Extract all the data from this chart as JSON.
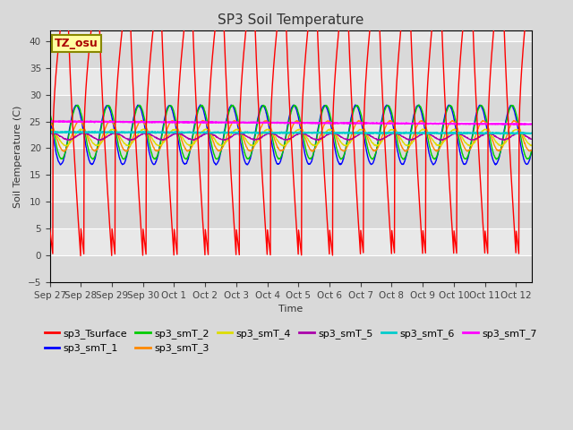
{
  "title": "SP3 Soil Temperature",
  "xlabel": "Time",
  "ylabel": "Soil Temperature (C)",
  "ylim": [
    -5,
    42
  ],
  "yticks": [
    -5,
    0,
    5,
    10,
    15,
    20,
    25,
    30,
    35,
    40
  ],
  "annotation": "TZ_osu",
  "num_days": 15.5,
  "series_colors": {
    "sp3_Tsurface": "#ff0000",
    "sp3_smT_1": "#0000ff",
    "sp3_smT_2": "#00cc00",
    "sp3_smT_3": "#ff8800",
    "sp3_smT_4": "#dddd00",
    "sp3_smT_5": "#aa00aa",
    "sp3_smT_6": "#00cccc",
    "sp3_smT_7": "#ff00ff"
  },
  "x_tick_labels": [
    "Sep 27",
    "Sep 28",
    "Sep 29",
    "Sep 30",
    "Oct 1",
    "Oct 2",
    "Oct 3",
    "Oct 4",
    "Oct 5",
    "Oct 6",
    "Oct 7",
    "Oct 8",
    "Oct 9",
    "Oct 10",
    "Oct 11",
    "Oct 12"
  ],
  "background_color": "#d9d9d9",
  "plot_bg_color": "#e8e8e8",
  "grid_color": "#ffffff"
}
